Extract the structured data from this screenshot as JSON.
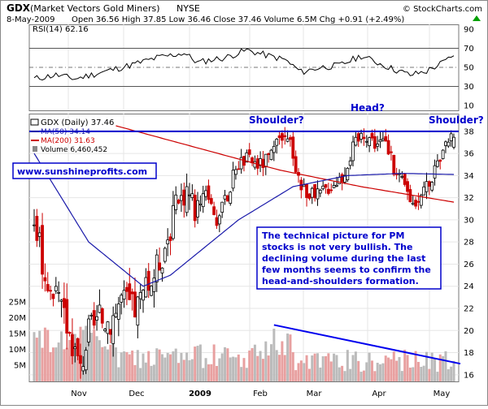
{
  "header": {
    "symbol": "GDX",
    "name": "(Market Vectors Gold Miners)",
    "exchange": "NYSE",
    "credit": "© StockCharts.com",
    "date": "8-May-2009",
    "quote": "Open 36.56  High 37.85  Low 36.46  Close 37.46  Volume 6.5M  Chg +0.91 (+2.49%)",
    "chg_arrow_color": "#00a000"
  },
  "rsi_panel": {
    "label": "RSI(14) 62.16",
    "ticks": [
      10,
      30,
      50,
      70,
      90
    ],
    "levels": [
      30,
      70
    ],
    "center": 50,
    "range": [
      5,
      95
    ]
  },
  "price_panel": {
    "legend": {
      "title": "GDX (Daily) 37.46",
      "ma50": "MA(50) 34.14",
      "ma200": "MA(200) 31.63",
      "volume": "Volume 6,460,452"
    },
    "ticks": [
      16,
      18,
      20,
      22,
      24,
      26,
      28,
      30,
      32,
      34,
      36,
      38
    ],
    "range": [
      15.4,
      39.6
    ],
    "volume_ticks": [
      "5M",
      "10M",
      "15M",
      "20M",
      "25M"
    ]
  },
  "x_axis": {
    "labels": [
      "Nov",
      "Dec",
      "2009",
      "Feb",
      "Mar",
      "Apr",
      "May"
    ]
  },
  "annotations": {
    "shoulder_left": "Shoulder?",
    "head": "Head?",
    "shoulder_right": "Shoulder?",
    "website": "www.sunshineprofits.com",
    "commentary_lines": [
      "The technical picture for PM",
      "stocks is not very bullish. The",
      "declining volume during the last",
      "few months seems to confirm the",
      "head-and-shoulders formation."
    ]
  },
  "colors": {
    "up": "#000000",
    "down": "#cc0000",
    "ma50": "#1a1aaa",
    "ma200": "#cc0000",
    "neckline": "#0000cc",
    "volume_trend": "#0000ee",
    "rsi": "#000000",
    "annotation_text": "#0000cc",
    "box_border": "#0000cc"
  },
  "chart_data": {
    "type": "candlestick",
    "title": "GDX (Market Vectors Gold Miners) NYSE",
    "ylim": [
      15.4,
      39.6
    ],
    "ylabel": "",
    "xlabel": "",
    "resistance_level": 38,
    "series": [
      {
        "name": "GDX",
        "ohlc_keypoints": [
          {
            "x": 0,
            "c": 30
          },
          {
            "x": 5,
            "c": 24
          },
          {
            "x": 10,
            "c": 22
          },
          {
            "x": 14,
            "c": 19
          },
          {
            "x": 17,
            "c": 16.5
          },
          {
            "x": 20,
            "c": 20
          },
          {
            "x": 24,
            "c": 21
          },
          {
            "x": 28,
            "c": 21
          },
          {
            "x": 32,
            "c": 23
          },
          {
            "x": 37,
            "c": 22
          },
          {
            "x": 42,
            "c": 24
          },
          {
            "x": 47,
            "c": 27
          },
          {
            "x": 52,
            "c": 31
          },
          {
            "x": 56,
            "c": 33
          },
          {
            "x": 59,
            "c": 31
          },
          {
            "x": 63,
            "c": 33
          },
          {
            "x": 67,
            "c": 30
          },
          {
            "x": 71,
            "c": 32
          },
          {
            "x": 74,
            "c": 35
          },
          {
            "x": 78,
            "c": 35.5
          },
          {
            "x": 83,
            "c": 35
          },
          {
            "x": 88,
            "c": 36
          },
          {
            "x": 90,
            "c": 37.2
          },
          {
            "x": 94,
            "c": 37
          },
          {
            "x": 98,
            "c": 33
          },
          {
            "x": 103,
            "c": 32
          },
          {
            "x": 108,
            "c": 33
          },
          {
            "x": 113,
            "c": 34
          },
          {
            "x": 117,
            "c": 36.5
          },
          {
            "x": 121,
            "c": 38
          },
          {
            "x": 125,
            "c": 37
          },
          {
            "x": 129,
            "c": 37
          },
          {
            "x": 133,
            "c": 34
          },
          {
            "x": 136,
            "c": 33
          },
          {
            "x": 139,
            "c": 31.5
          },
          {
            "x": 142,
            "c": 32.5
          },
          {
            "x": 146,
            "c": 34
          },
          {
            "x": 149,
            "c": 35
          },
          {
            "x": 152,
            "c": 37
          },
          {
            "x": 154,
            "c": 37.5
          }
        ]
      },
      {
        "name": "MA(50)",
        "points": [
          {
            "x": 0,
            "y": 36
          },
          {
            "x": 20,
            "y": 28
          },
          {
            "x": 40,
            "y": 24
          },
          {
            "x": 50,
            "y": 25
          },
          {
            "x": 75,
            "y": 30
          },
          {
            "x": 95,
            "y": 33
          },
          {
            "x": 115,
            "y": 34
          },
          {
            "x": 135,
            "y": 34.2
          },
          {
            "x": 154,
            "y": 34.1
          }
        ]
      },
      {
        "name": "MA(200)",
        "points": [
          {
            "x": 30,
            "y": 38.5
          },
          {
            "x": 60,
            "y": 36.5
          },
          {
            "x": 90,
            "y": 34.5
          },
          {
            "x": 120,
            "y": 33.0
          },
          {
            "x": 154,
            "y": 31.6
          }
        ]
      }
    ],
    "volume_trend": [
      {
        "x": 88,
        "y": 20.5
      },
      {
        "x": 154,
        "y": 17
      }
    ],
    "rsi_keypoints": [
      {
        "x": 0,
        "y": 38
      },
      {
        "x": 8,
        "y": 42
      },
      {
        "x": 15,
        "y": 38
      },
      {
        "x": 25,
        "y": 45
      },
      {
        "x": 35,
        "y": 52
      },
      {
        "x": 45,
        "y": 60
      },
      {
        "x": 55,
        "y": 65
      },
      {
        "x": 60,
        "y": 55
      },
      {
        "x": 65,
        "y": 58
      },
      {
        "x": 70,
        "y": 60
      },
      {
        "x": 78,
        "y": 68
      },
      {
        "x": 86,
        "y": 62
      },
      {
        "x": 92,
        "y": 58
      },
      {
        "x": 98,
        "y": 45
      },
      {
        "x": 105,
        "y": 50
      },
      {
        "x": 112,
        "y": 52
      },
      {
        "x": 120,
        "y": 62
      },
      {
        "x": 126,
        "y": 55
      },
      {
        "x": 132,
        "y": 48
      },
      {
        "x": 138,
        "y": 42
      },
      {
        "x": 144,
        "y": 46
      },
      {
        "x": 150,
        "y": 55
      },
      {
        "x": 154,
        "y": 62.16
      }
    ]
  }
}
